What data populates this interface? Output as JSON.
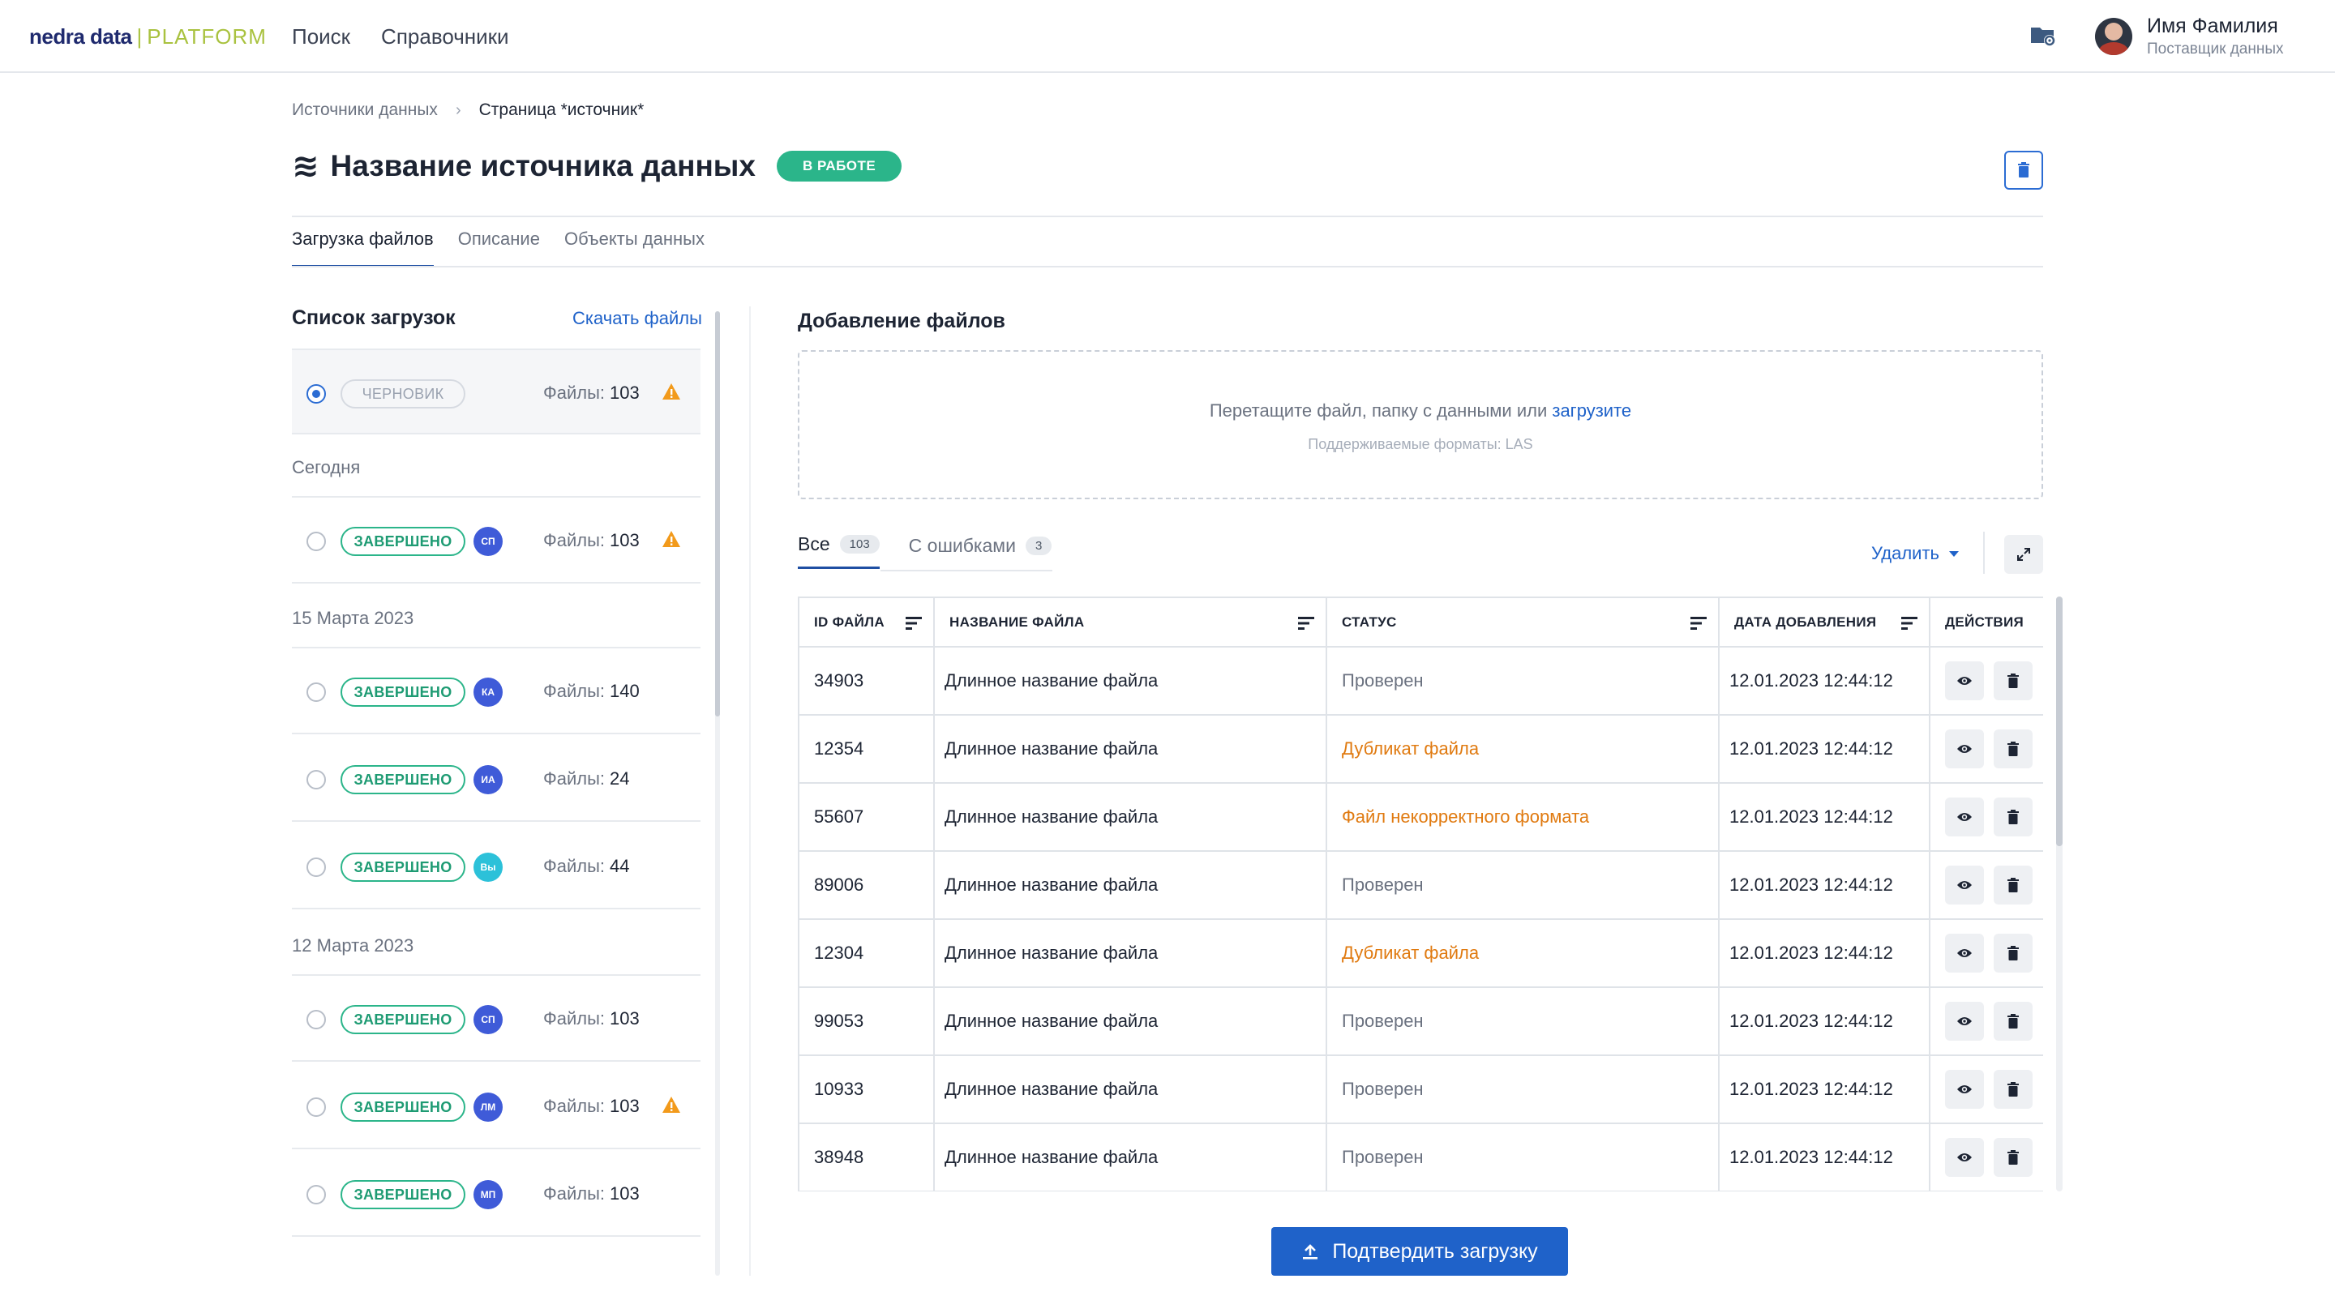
{
  "header": {
    "logo_main": "nedra data",
    "logo_sep": "|",
    "logo_sub": "PLATFORM",
    "nav": [
      "Поиск",
      "Справочники"
    ],
    "user_name": "Имя Фамилия",
    "user_role": "Поставщик данных"
  },
  "breadcrumb": {
    "parent": "Источники данных",
    "separator": "›",
    "current": "Страница *источник*"
  },
  "page": {
    "title_icon": "≋",
    "title": "Название источника данных",
    "status": "В РАБОТЕ"
  },
  "tabs": [
    "Загрузка файлов",
    "Описание",
    "Объекты данных"
  ],
  "uploads": {
    "title": "Список загрузок",
    "download_link": "Скачать файлы",
    "files_label": "Файлы:",
    "draft": {
      "status": "ЧЕРНОВИК",
      "files": "103",
      "warning": true,
      "selected": true
    },
    "groups": [
      {
        "label": "Сегодня",
        "items": [
          {
            "status": "ЗАВЕРШЕНО",
            "initials": "СП",
            "color": "#3f5bd8",
            "files": "103",
            "warning": true
          }
        ]
      },
      {
        "label": "15 Марта 2023",
        "items": [
          {
            "status": "ЗАВЕРШЕНО",
            "initials": "КА",
            "color": "#3f5bd8",
            "files": "140",
            "warning": false
          },
          {
            "status": "ЗАВЕРШЕНО",
            "initials": "ИА",
            "color": "#3f5bd8",
            "files": "24",
            "warning": false
          },
          {
            "status": "ЗАВЕРШЕНО",
            "initials": "Вы",
            "color": "#2cc1d9",
            "files": "44",
            "warning": false
          }
        ]
      },
      {
        "label": "12 Марта 2023",
        "items": [
          {
            "status": "ЗАВЕРШЕНО",
            "initials": "СП",
            "color": "#3f5bd8",
            "files": "103",
            "warning": false
          },
          {
            "status": "ЗАВЕРШЕНО",
            "initials": "ЛМ",
            "color": "#3f5bd8",
            "files": "103",
            "warning": true
          },
          {
            "status": "ЗАВЕРШЕНО",
            "initials": "МП",
            "color": "#3f5bd8",
            "files": "103",
            "warning": false
          }
        ]
      }
    ]
  },
  "add_files": {
    "title": "Добавление файлов",
    "drop_text": "Перетащите файл, папку с данными или",
    "drop_link": "загрузите",
    "formats": "Поддерживаемые форматы: LAS"
  },
  "filter_tabs": [
    {
      "label": "Все",
      "count": "103"
    },
    {
      "label": "С ошибками",
      "count": "3"
    }
  ],
  "delete_label": "Удалить",
  "table": {
    "columns": [
      "ID ФАЙЛА",
      "НАЗВАНИЕ ФАЙЛА",
      "СТАТУС",
      "ДАТА ДОБАВЛЕНИЯ",
      "ДЕЙСТВИЯ"
    ],
    "rows": [
      {
        "id": "34903",
        "name": "Длинное название файла",
        "status": "Проверен",
        "error": false,
        "date": "12.01.2023 12:44:12"
      },
      {
        "id": "12354",
        "name": "Длинное название файла",
        "status": "Дубликат файла",
        "error": true,
        "date": "12.01.2023 12:44:12"
      },
      {
        "id": "55607",
        "name": "Длинное название файла",
        "status": "Файл некорректного формата",
        "error": true,
        "date": "12.01.2023 12:44:12"
      },
      {
        "id": "89006",
        "name": "Длинное название файла",
        "status": "Проверен",
        "error": false,
        "date": "12.01.2023 12:44:12"
      },
      {
        "id": "12304",
        "name": "Длинное название файла",
        "status": "Дубликат файла",
        "error": true,
        "date": "12.01.2023 12:44:12"
      },
      {
        "id": "99053",
        "name": "Длинное название файла",
        "status": "Проверен",
        "error": false,
        "date": "12.01.2023 12:44:12"
      },
      {
        "id": "10933",
        "name": "Длинное название файла",
        "status": "Проверен",
        "error": false,
        "date": "12.01.2023 12:44:12"
      },
      {
        "id": "38948",
        "name": "Длинное название файла",
        "status": "Проверен",
        "error": false,
        "date": "12.01.2023 12:44:12"
      }
    ]
  },
  "confirm_label": "Подтвердить загрузку",
  "colors": {
    "primary": "#1f62c9",
    "success": "#2bb58a",
    "warning": "#f29a1b",
    "error_text": "#e07a10"
  }
}
